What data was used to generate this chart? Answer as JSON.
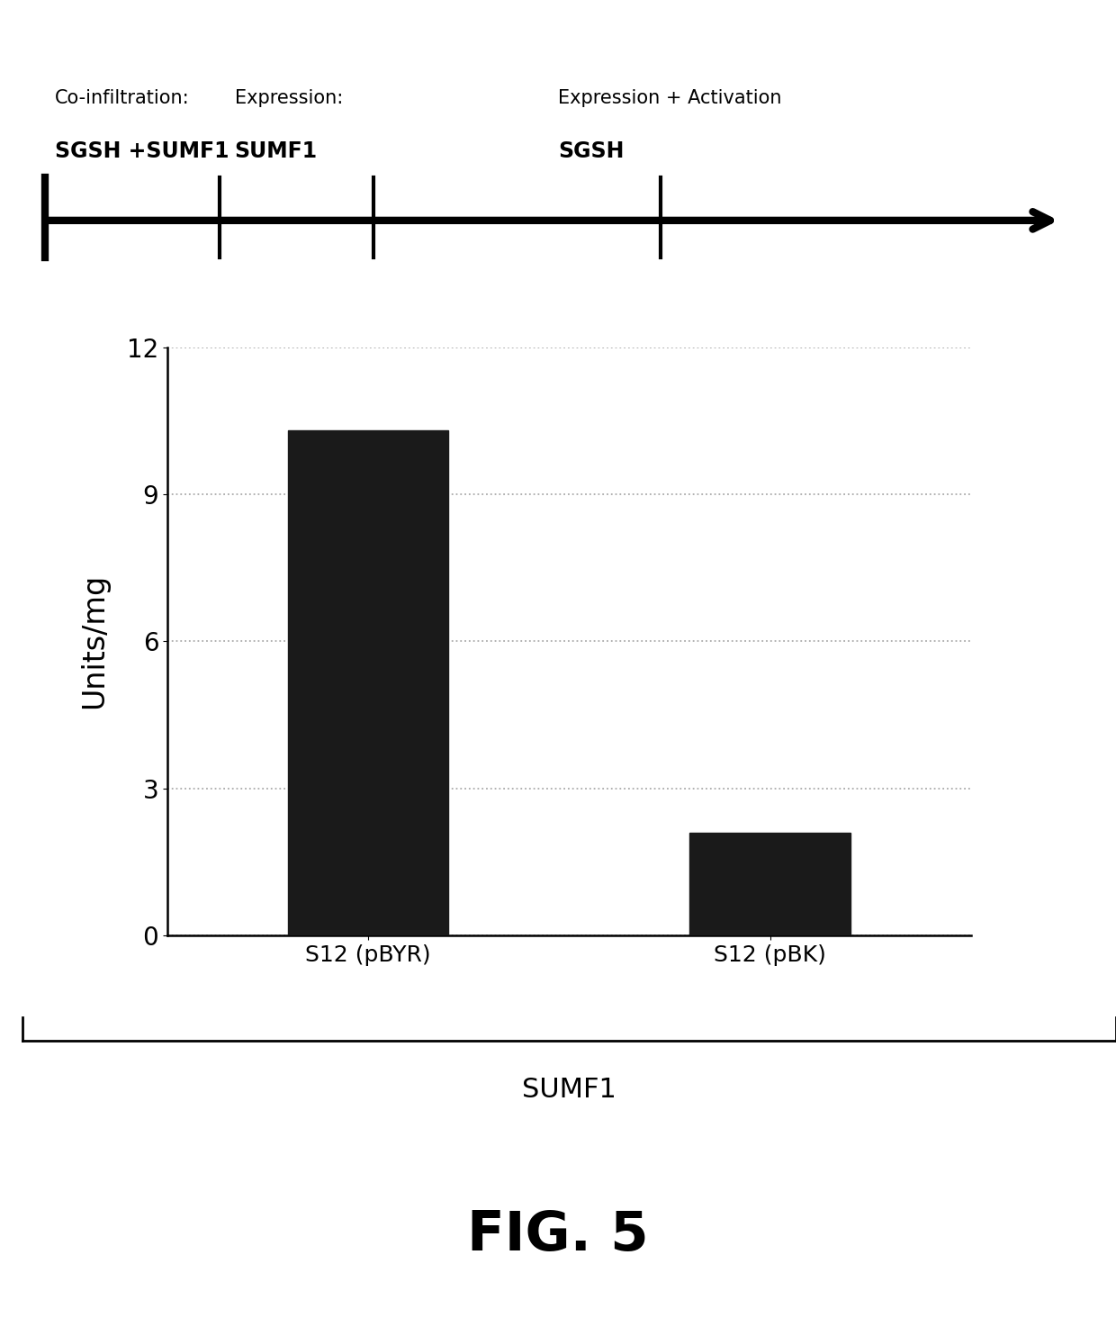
{
  "bar_categories": [
    "S12 (pBYR)",
    "S12 (pBK)"
  ],
  "bar_values": [
    10.3,
    2.1
  ],
  "bar_color": "#1a1a1a",
  "ylabel": "Units/mg",
  "ylim": [
    0,
    12
  ],
  "yticks": [
    0,
    3,
    6,
    9,
    12
  ],
  "group_label": "SUMF1",
  "fig_label": "FIG. 5",
  "background_color": "#ffffff",
  "bar_width": 0.4,
  "grid_color": "#aaaaaa"
}
